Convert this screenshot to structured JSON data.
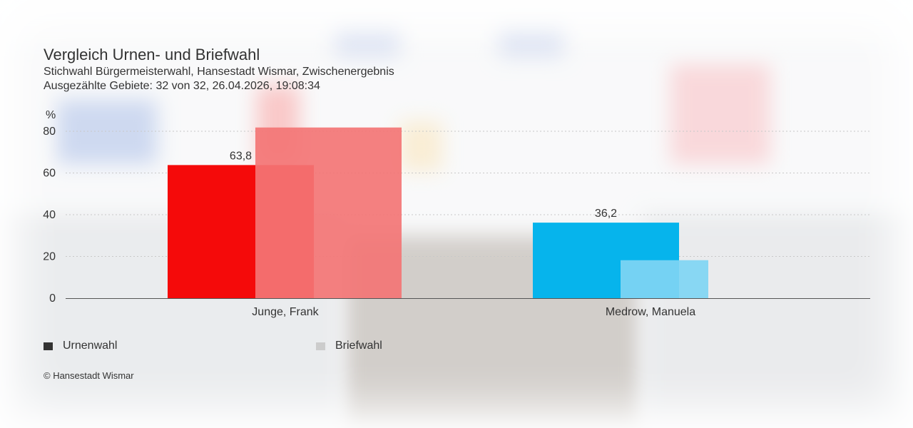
{
  "header": {
    "title": "Vergleich Urnen- und Briefwahl",
    "subtitle": "Stichwahl Bürgermeisterwahl, Hansestadt Wismar, Zwischenergebnis",
    "status": "Ausgezählte Gebiete: 32 von 32, 26.04.2026, 19:08:34"
  },
  "chart_data": {
    "type": "bar",
    "title": "Vergleich Urnen- und Briefwahl",
    "ylabel": "%",
    "ylim": [
      0,
      80
    ],
    "yticks": [
      0,
      20,
      40,
      60,
      80
    ],
    "grid": true,
    "legend_position": "bottom-left",
    "categories": [
      "Junge, Frank",
      "Medrow, Manuela"
    ],
    "series": [
      {
        "name": "Urnenwahl",
        "values": [
          63.8,
          36.2
        ],
        "labels": [
          "63,8",
          "36,2"
        ]
      },
      {
        "name": "Briefwahl",
        "values": [
          81.8,
          18.2
        ]
      }
    ],
    "colors": {
      "Junge, Frank": {
        "Urnenwahl": "#f50a0a",
        "Briefwahl": "#f37575"
      },
      "Medrow, Manuela": {
        "Urnenwahl": "#06b4ec",
        "Briefwahl": "#7fd5f3"
      }
    }
  },
  "legend": {
    "items": [
      {
        "label": "Urnenwahl",
        "color": "#333333"
      },
      {
        "label": "Briefwahl",
        "color": "#cccccc"
      }
    ]
  },
  "footer": {
    "copyright": "© Hansestadt Wismar"
  }
}
